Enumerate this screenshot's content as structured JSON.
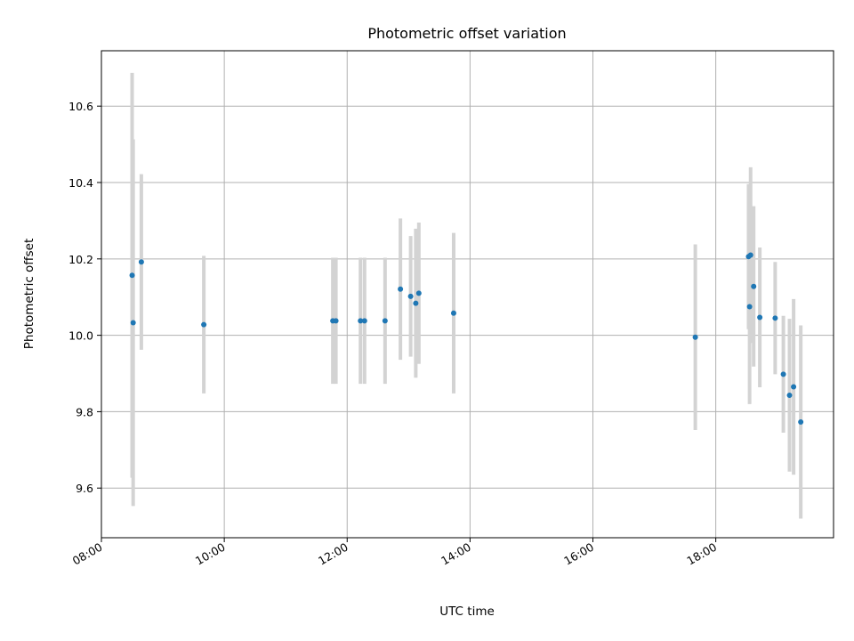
{
  "chart_data": {
    "type": "scatter",
    "title": "Photometric offset variation",
    "xlabel": "UTC time",
    "ylabel": "Photometric offset",
    "xlim": [
      "08:00",
      "19:55"
    ],
    "ylim": [
      9.47,
      10.745
    ],
    "x_ticks": [
      "08:00",
      "10:00",
      "12:00",
      "14:00",
      "16:00",
      "18:00"
    ],
    "y_ticks": [
      9.6,
      9.8,
      10.0,
      10.2,
      10.4,
      10.6
    ],
    "y_tick_labels": [
      "9.6",
      "9.8",
      "10.0",
      "10.2",
      "10.4",
      "10.6"
    ],
    "grid": true,
    "point_color": "#1f77b4",
    "errorbar_color": "#d3d3d3",
    "points": [
      {
        "x": "08:30",
        "y": 10.157,
        "yerr": 0.53
      },
      {
        "x": "08:31",
        "y": 10.033,
        "yerr": 0.48
      },
      {
        "x": "08:39",
        "y": 10.192,
        "yerr": 0.23
      },
      {
        "x": "09:40",
        "y": 10.028,
        "yerr": 0.18
      },
      {
        "x": "11:46",
        "y": 10.038,
        "yerr": 0.165
      },
      {
        "x": "11:49",
        "y": 10.038,
        "yerr": 0.165
      },
      {
        "x": "12:13",
        "y": 10.038,
        "yerr": 0.165
      },
      {
        "x": "12:17",
        "y": 10.038,
        "yerr": 0.165
      },
      {
        "x": "12:37",
        "y": 10.038,
        "yerr": 0.165
      },
      {
        "x": "12:52",
        "y": 10.121,
        "yerr": 0.185
      },
      {
        "x": "13:02",
        "y": 10.102,
        "yerr": 0.158
      },
      {
        "x": "13:07",
        "y": 10.084,
        "yerr": 0.195
      },
      {
        "x": "13:10",
        "y": 10.11,
        "yerr": 0.185
      },
      {
        "x": "13:44",
        "y": 10.058,
        "yerr": 0.21
      },
      {
        "x": "17:40",
        "y": 9.995,
        "yerr": 0.243
      },
      {
        "x": "18:32",
        "y": 10.206,
        "yerr": 0.19
      },
      {
        "x": "18:33",
        "y": 10.075,
        "yerr": 0.255
      },
      {
        "x": "18:34",
        "y": 10.21,
        "yerr": 0.23
      },
      {
        "x": "18:37",
        "y": 10.128,
        "yerr": 0.21
      },
      {
        "x": "18:43",
        "y": 10.047,
        "yerr": 0.183
      },
      {
        "x": "18:58",
        "y": 10.045,
        "yerr": 0.147
      },
      {
        "x": "19:06",
        "y": 9.898,
        "yerr": 0.153
      },
      {
        "x": "19:12",
        "y": 9.843,
        "yerr": 0.2
      },
      {
        "x": "19:16",
        "y": 9.865,
        "yerr": 0.23
      },
      {
        "x": "19:23",
        "y": 9.773,
        "yerr": 0.253
      }
    ]
  }
}
